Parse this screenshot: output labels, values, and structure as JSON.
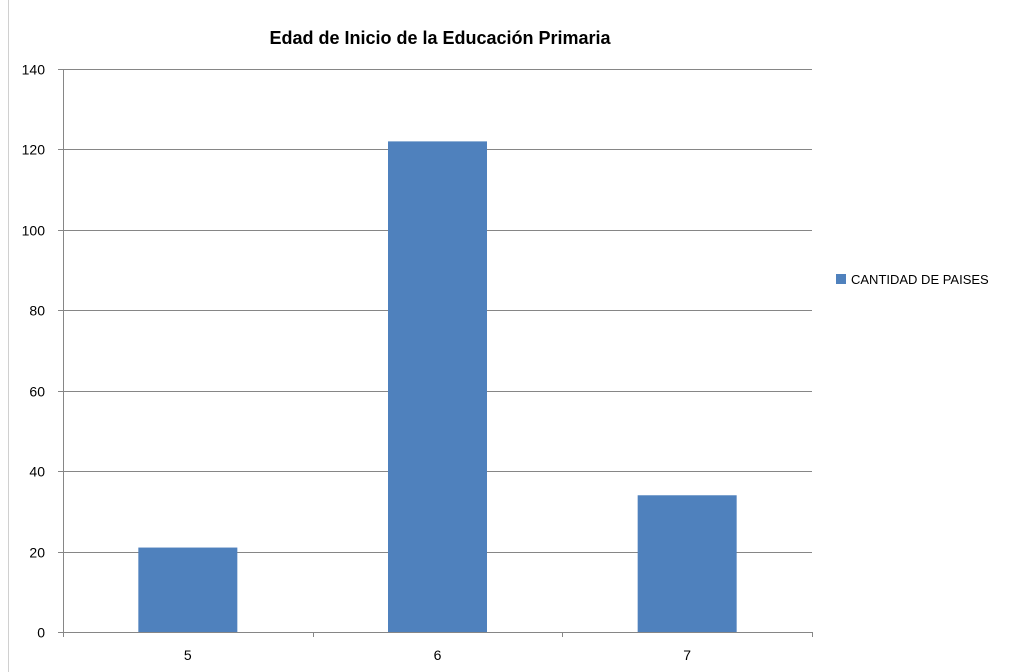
{
  "chart_data": {
    "type": "bar",
    "title": "Edad de Inicio de la Educación Primaria",
    "categories": [
      "5",
      "6",
      "7"
    ],
    "series": [
      {
        "name": "CANTIDAD DE PAISES",
        "values": [
          21,
          122,
          34
        ],
        "color": "#4f81bd"
      }
    ],
    "xlabel": "",
    "ylabel": "",
    "ylim": [
      0,
      140
    ],
    "yticks": [
      "0",
      "20",
      "40",
      "60",
      "80",
      "100",
      "120",
      "140"
    ],
    "grid": true,
    "legend_position": "right",
    "gridline_color": "#868686"
  }
}
